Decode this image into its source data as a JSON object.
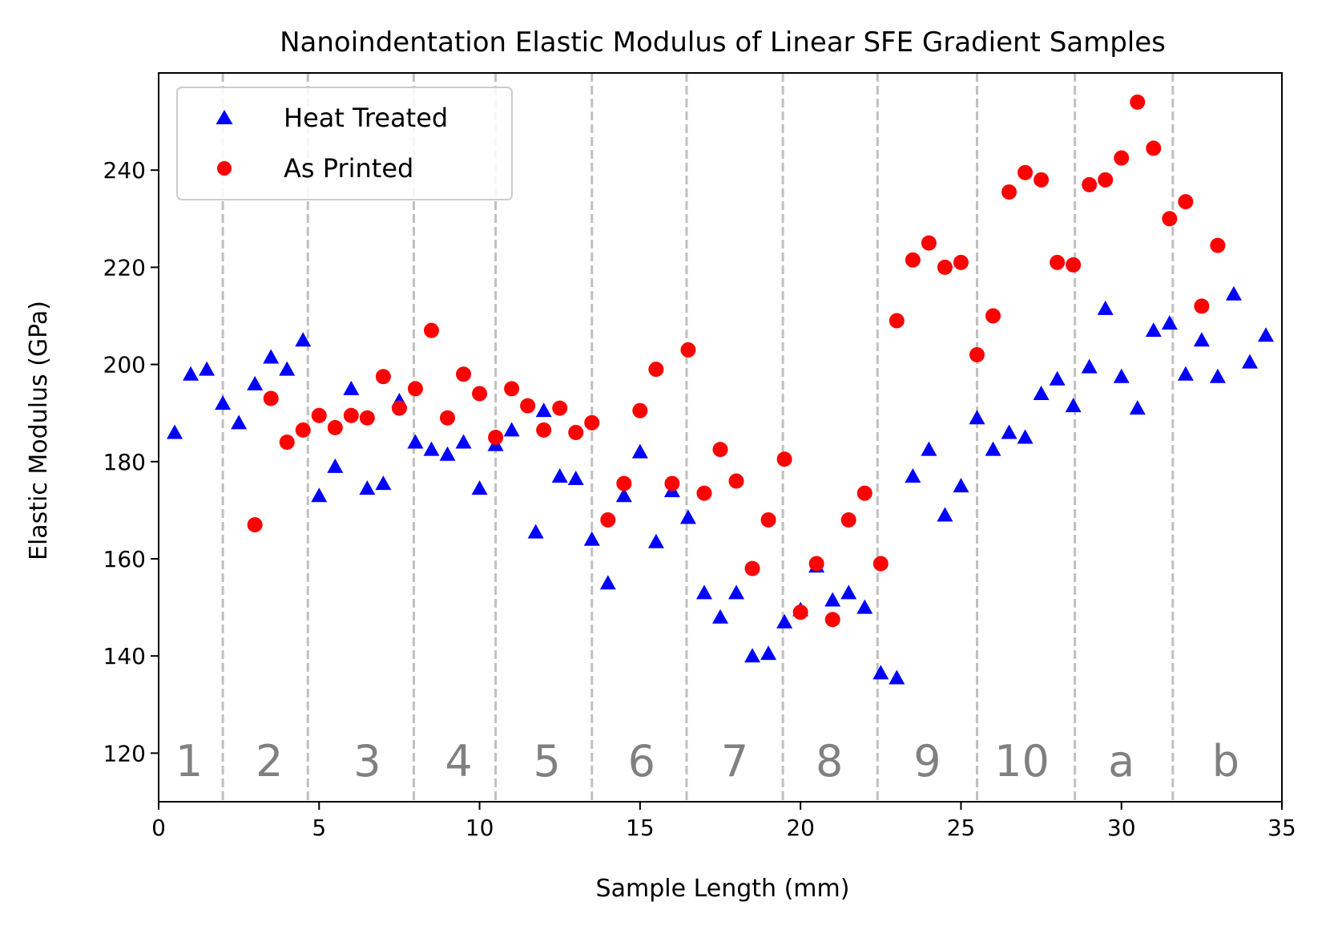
{
  "chart_data": {
    "type": "scatter",
    "title": "Nanoindentation Elastic Modulus of Linear SFE Gradient Samples",
    "xlabel": "Sample Length (mm)",
    "ylabel": "Elastic Modulus (GPa)",
    "xlim": [
      0,
      35
    ],
    "ylim": [
      110,
      260
    ],
    "xticks": [
      0,
      5,
      10,
      15,
      20,
      25,
      30,
      35
    ],
    "yticks": [
      120,
      140,
      160,
      180,
      200,
      220,
      240
    ],
    "grid": false,
    "legend_position": "top-left",
    "boundaries": [
      2.0,
      4.65,
      7.95,
      10.5,
      13.5,
      16.45,
      19.45,
      22.4,
      25.5,
      28.55,
      31.6
    ],
    "region_labels": [
      {
        "label": "1",
        "x": 0.95
      },
      {
        "label": "2",
        "x": 3.45
      },
      {
        "label": "3",
        "x": 6.5
      },
      {
        "label": "4",
        "x": 9.35
      },
      {
        "label": "5",
        "x": 12.1
      },
      {
        "label": "6",
        "x": 15.05
      },
      {
        "label": "7",
        "x": 17.95
      },
      {
        "label": "8",
        "x": 20.9
      },
      {
        "label": "9",
        "x": 23.95
      },
      {
        "label": "10",
        "x": 26.9
      },
      {
        "label": "a",
        "x": 30.0
      },
      {
        "label": "b",
        "x": 33.25
      }
    ],
    "series": [
      {
        "name": "Heat Treated",
        "marker": "triangle",
        "color": "#0000ff",
        "x": [
          0.5,
          1.0,
          1.5,
          2.0,
          2.5,
          3.0,
          3.5,
          4.0,
          4.5,
          5.0,
          5.5,
          6.0,
          6.5,
          7.0,
          7.5,
          8.0,
          8.5,
          9.0,
          9.5,
          10.0,
          10.5,
          11.0,
          11.75,
          12.0,
          12.5,
          13.0,
          13.5,
          14.0,
          14.5,
          15.0,
          15.5,
          16.0,
          16.5,
          17.0,
          17.5,
          18.0,
          18.5,
          19.0,
          19.5,
          20.0,
          20.5,
          21.0,
          21.5,
          22.0,
          22.5,
          23.0,
          23.5,
          24.0,
          24.5,
          25.0,
          25.5,
          26.0,
          26.5,
          27.0,
          27.5,
          28.0,
          28.5,
          29.0,
          29.5,
          30.0,
          30.5,
          31.0,
          31.5,
          32.0,
          32.5,
          33.0,
          33.5,
          34.0,
          34.5
        ],
        "y": [
          186,
          198,
          199,
          192,
          188,
          196,
          201.5,
          199,
          205,
          173,
          179,
          195,
          174.5,
          175.5,
          192.5,
          184,
          182.5,
          181.5,
          184,
          174.5,
          183.5,
          186.5,
          165.5,
          190.5,
          177,
          176.5,
          164,
          155,
          173,
          182,
          163.5,
          174,
          168.5,
          153,
          148,
          153,
          140,
          140.5,
          147,
          149.5,
          158.5,
          151.5,
          153,
          150,
          136.5,
          135.5,
          177,
          182.5,
          169,
          175,
          189,
          182.5,
          186,
          185,
          194,
          197,
          191.5,
          199.5,
          211.5,
          197.5,
          191,
          207,
          208.5,
          198,
          205,
          197.5,
          214.5,
          200.5,
          206
        ]
      },
      {
        "name": "As Printed",
        "marker": "circle",
        "color": "#ff0000",
        "x": [
          3.0,
          3.5,
          4.0,
          4.5,
          5.0,
          5.5,
          6.0,
          6.5,
          7.0,
          7.5,
          8.0,
          8.5,
          9.0,
          9.5,
          10.0,
          10.5,
          11.0,
          11.5,
          12.0,
          12.5,
          13.0,
          13.5,
          14.0,
          14.5,
          15.0,
          15.5,
          16.0,
          16.5,
          17.0,
          17.5,
          18.0,
          18.5,
          19.0,
          19.5,
          20.0,
          20.5,
          21.0,
          21.5,
          22.0,
          22.5,
          23.0,
          23.5,
          24.0,
          24.5,
          25.0,
          25.5,
          26.0,
          26.5,
          27.0,
          27.5,
          28.0,
          28.5,
          29.0,
          29.5,
          30.0,
          30.5,
          31.0,
          31.5,
          32.0,
          32.5,
          33.0
        ],
        "y": [
          167,
          193,
          184,
          186.5,
          189.5,
          187,
          189.5,
          189,
          197.5,
          191,
          195,
          207,
          189,
          198,
          194,
          185,
          195,
          191.5,
          186.5,
          191,
          186,
          188,
          168,
          175.5,
          190.5,
          199,
          175.5,
          203,
          173.5,
          182.5,
          176,
          158,
          168,
          180.5,
          149,
          159,
          147.5,
          168,
          173.5,
          159,
          209,
          221.5,
          225,
          220,
          221,
          202,
          210,
          235.5,
          239.5,
          238,
          221,
          220.5,
          237,
          238,
          242.5,
          254,
          244.5,
          230,
          233.5,
          212,
          224.5
        ]
      }
    ]
  }
}
